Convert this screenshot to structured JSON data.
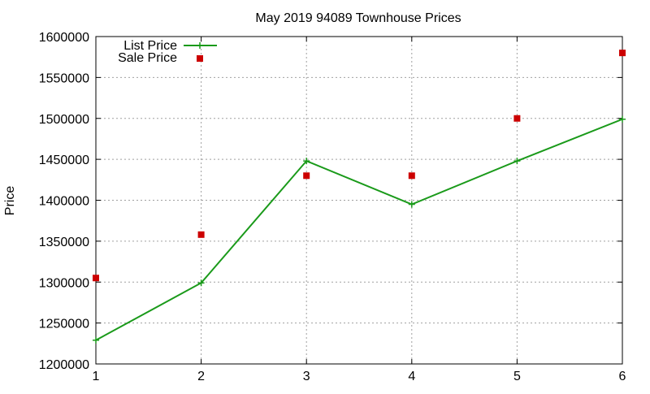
{
  "chart_data": {
    "type": "line",
    "title": "May 2019 94089 Townhouse Prices",
    "xlabel": "",
    "ylabel": "Price",
    "xlim": [
      1,
      6
    ],
    "ylim": [
      1200000,
      1600000
    ],
    "x_ticks": [
      1,
      2,
      3,
      4,
      5,
      6
    ],
    "y_ticks": [
      1200000,
      1250000,
      1300000,
      1350000,
      1400000,
      1450000,
      1500000,
      1550000,
      1600000
    ],
    "grid": true,
    "legend_position": "top-left",
    "series": [
      {
        "name": "List Price",
        "style": "line-with-plus-markers",
        "color": "#1a9a1a",
        "x": [
          1,
          2,
          3,
          4,
          5,
          6
        ],
        "values": [
          1229000,
          1299000,
          1448000,
          1395000,
          1448000,
          1499000
        ]
      },
      {
        "name": "Sale Price",
        "style": "square-markers",
        "color": "#cc0000",
        "x": [
          1,
          2,
          3,
          4,
          5,
          6
        ],
        "values": [
          1305000,
          1358000,
          1430000,
          1430000,
          1500000,
          1580000
        ]
      }
    ]
  }
}
